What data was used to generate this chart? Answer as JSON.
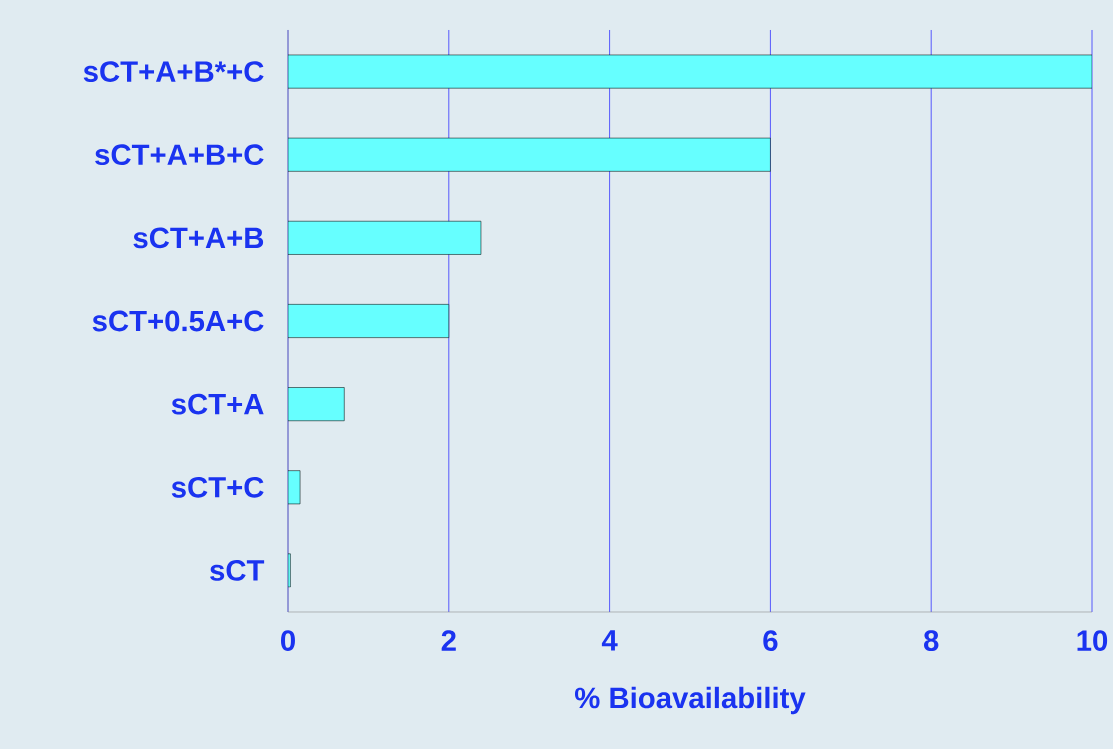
{
  "chart_data": {
    "type": "bar",
    "orientation": "horizontal",
    "xlabel": "% Bioavailability",
    "categories": [
      "sCT+A+B*+C",
      "sCT+A+B+C",
      "sCT+A+B",
      "sCT+0.5A+C",
      "sCT+A",
      "sCT+C",
      "sCT"
    ],
    "values": [
      10,
      6.0,
      2.4,
      2.0,
      0.7,
      0.15,
      0.03
    ],
    "color": "#66ffff",
    "xlim": [
      0,
      10
    ],
    "xticks": [
      0,
      2,
      4,
      6,
      8,
      10
    ],
    "grid": "x"
  }
}
